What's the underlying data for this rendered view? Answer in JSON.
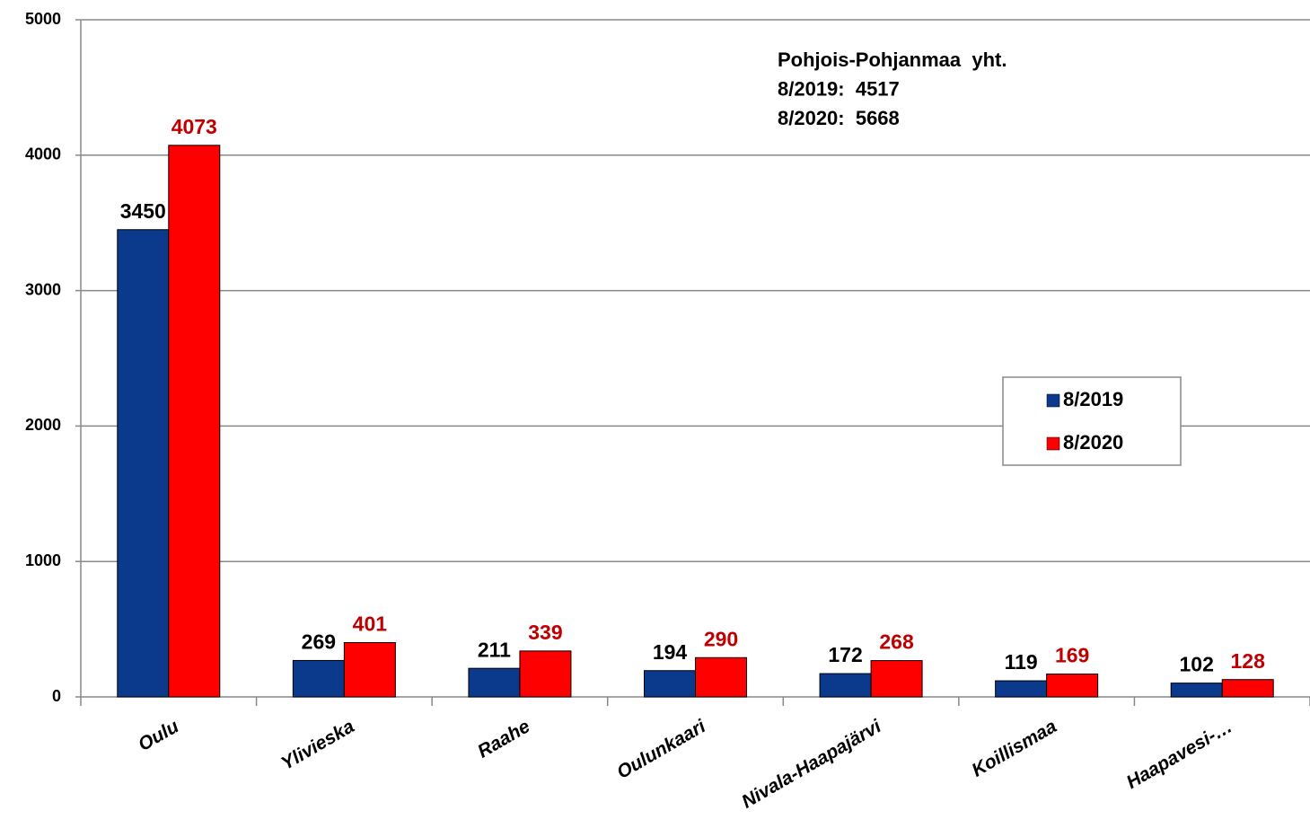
{
  "chart_data": {
    "type": "bar",
    "categories": [
      "Oulu",
      "Ylivieska",
      "Raahe",
      "Oulunkaari",
      "Nivala-Haapajärvi",
      "Koillismaa",
      "Haapavesi-…"
    ],
    "series": [
      {
        "name": "8/2019",
        "color": "#0b3a8c",
        "label_color": "#000000",
        "values": [
          3450,
          269,
          211,
          194,
          172,
          119,
          102
        ]
      },
      {
        "name": "8/2020",
        "color": "#ff0000",
        "label_color": "#c00000",
        "values": [
          4073,
          401,
          339,
          290,
          268,
          169,
          128
        ]
      }
    ],
    "annotations": [
      "Pohjois-Pohjanmaa  yht.",
      "8/2019:  4517",
      "8/2020:  5668"
    ],
    "ylim": [
      0,
      5000
    ],
    "yticks": [
      0,
      1000,
      2000,
      3000,
      4000,
      5000
    ],
    "grid": true,
    "legend": "right"
  }
}
